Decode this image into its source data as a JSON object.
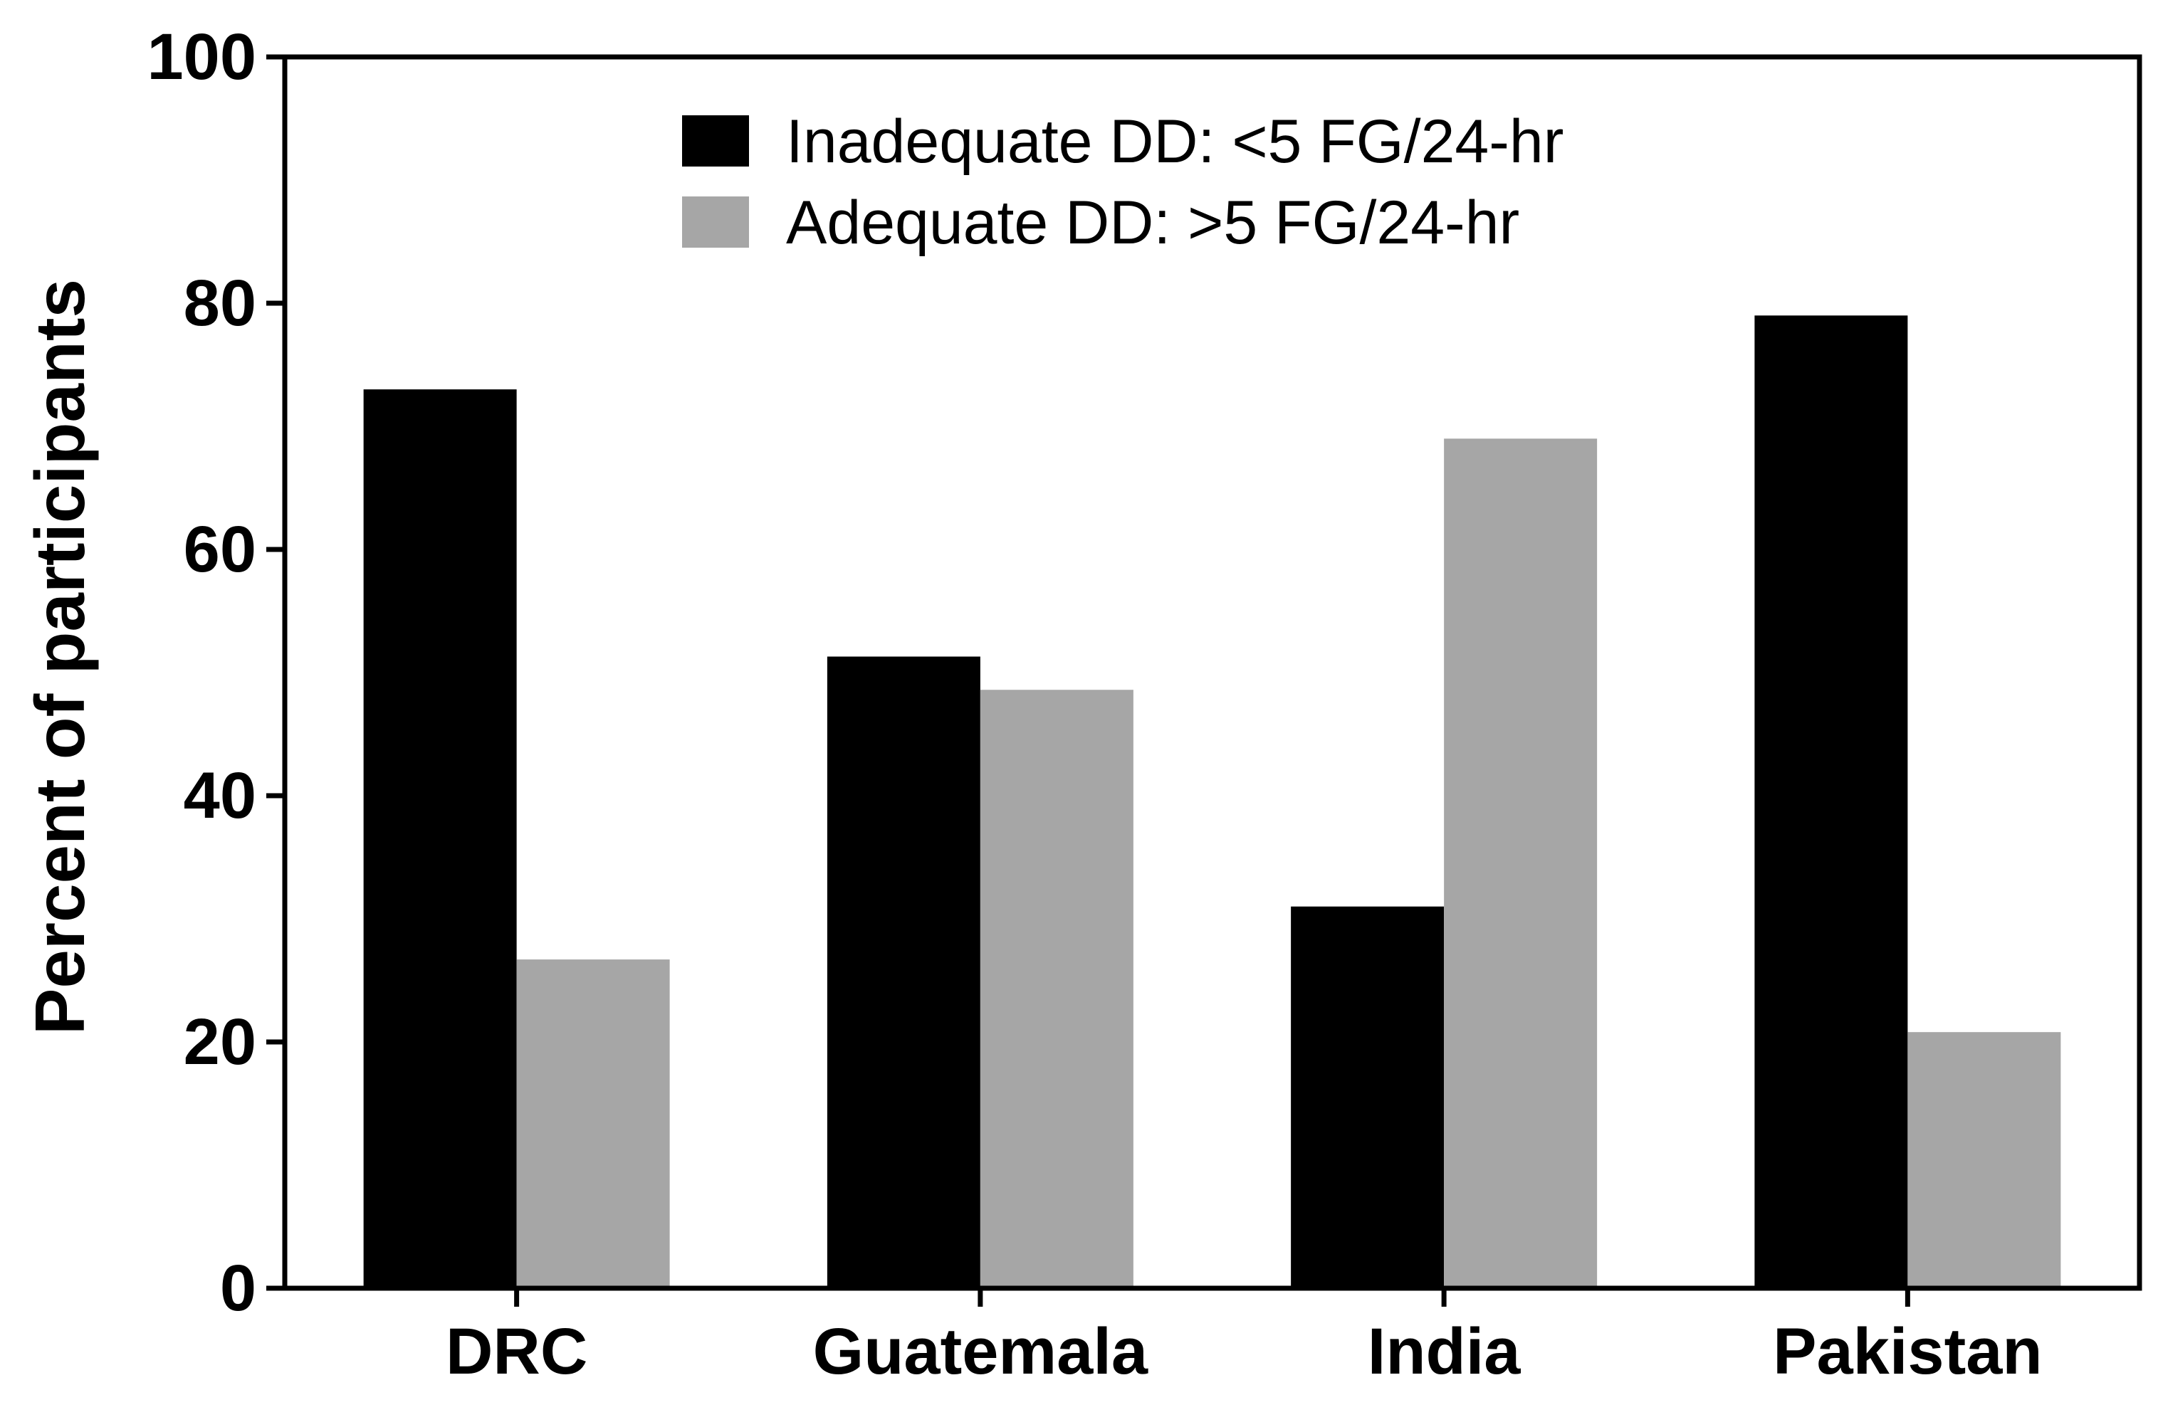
{
  "chart_data": {
    "type": "bar",
    "title": "",
    "xlabel": "",
    "ylabel": "Percent of participants",
    "ylim": [
      0,
      100
    ],
    "yticks": [
      "0",
      "20",
      "40",
      "60",
      "80",
      "100"
    ],
    "categories": [
      "DRC",
      "Guatemala",
      "India",
      "Pakistan"
    ],
    "series": [
      {
        "name": "Inadequate DD: <5 FG/24-hr",
        "color": "#000000",
        "values": [
          73,
          51.3,
          31,
          79
        ]
      },
      {
        "name": "Adequate DD: >5 FG/24-hr",
        "color": "#a6a6a6",
        "values": [
          26.7,
          48.6,
          69,
          20.8
        ]
      }
    ],
    "legend": "top-center",
    "grid": false
  }
}
